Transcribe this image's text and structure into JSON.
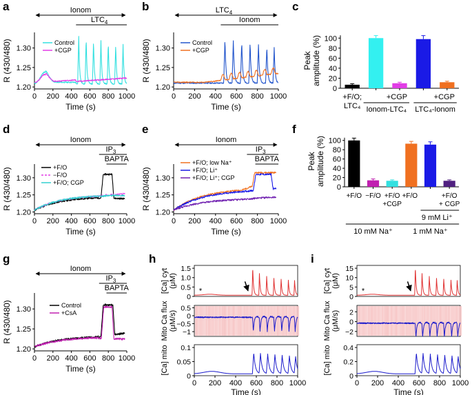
{
  "figure": {
    "panel_labels": [
      "a",
      "b",
      "c",
      "d",
      "e",
      "f",
      "g",
      "h",
      "i"
    ]
  },
  "chart_data": [
    {
      "id": "a",
      "type": "line",
      "xlabel": "Time (s)",
      "ylabel": "R (430/480)",
      "xlim": [
        0,
        1000
      ],
      "ylim": [
        1.195,
        1.34
      ],
      "xticks": [
        0,
        200,
        400,
        600,
        800,
        1000
      ],
      "yticks": [
        1.2,
        1.25,
        1.3
      ],
      "ytick_labels": [
        "1.20",
        "1.25",
        "1.30"
      ],
      "bars": [
        {
          "label": "Ionom",
          "x": [
            0,
            1000
          ],
          "arrows": true,
          "sub": ""
        },
        {
          "label": "LTC",
          "sub": "4",
          "x": [
            450,
            1000
          ],
          "arrows": false
        }
      ],
      "legend": [
        {
          "name": "Control",
          "color": "#33e0e0",
          "dash": false
        },
        {
          "name": "+CGP",
          "color": "#e23ce6",
          "dash": false
        }
      ],
      "series": [
        {
          "name": "Control",
          "color": "#33e0e0",
          "base": 1.208,
          "dip": 1.238,
          "peak_times": [
            480,
            560,
            640,
            720,
            800,
            880,
            960
          ],
          "peak_heights": [
            1.33,
            1.325,
            1.32,
            1.318,
            1.315,
            1.31,
            1.308
          ]
        },
        {
          "name": "+CGP",
          "color": "#e23ce6",
          "base": 1.21,
          "dip": 1.232,
          "drift_end": 1.228
        }
      ]
    },
    {
      "id": "b",
      "type": "line",
      "xlabel": "Time (s)",
      "ylabel": "R (430/480)",
      "xlim": [
        0,
        1000
      ],
      "ylim": [
        1.195,
        1.34
      ],
      "xticks": [
        0,
        200,
        400,
        600,
        800,
        1000
      ],
      "yticks": [
        1.2,
        1.25,
        1.3
      ],
      "ytick_labels": [
        "1.20",
        "1.25",
        "1.30"
      ],
      "bars": [
        {
          "label": "LTC",
          "sub": "4",
          "x": [
            0,
            1000
          ],
          "arrows": true
        },
        {
          "label": "Ionom",
          "sub": "",
          "x": [
            450,
            1000
          ],
          "arrows": false
        }
      ],
      "legend": [
        {
          "name": "Control",
          "color": "#2255cc",
          "dash": false
        },
        {
          "name": "+CGP",
          "color": "#f07020",
          "dash": false
        }
      ],
      "series": [
        {
          "name": "Control",
          "color": "#2255cc",
          "base": 1.21,
          "peak_times": [
            490,
            570,
            650,
            730,
            810,
            890,
            960
          ],
          "peak_heights": [
            1.325,
            1.32,
            1.318,
            1.315,
            1.31,
            1.305,
            1.3
          ]
        },
        {
          "name": "+CGP",
          "color": "#f07020",
          "base": 1.212,
          "osc_amp": 0.015,
          "drift_end": 1.235
        }
      ]
    },
    {
      "id": "c",
      "type": "bar",
      "ylabel": "Peak amplitude (%)",
      "ylim": [
        0,
        110
      ],
      "yticks": [
        0,
        20,
        40,
        60,
        80,
        100
      ],
      "values": [
        7,
        100,
        10,
        98,
        12
      ],
      "errors": [
        2,
        5,
        2,
        7,
        2
      ],
      "colors": [
        "#000000",
        "#33f0f0",
        "#e23ce6",
        "#1a1ae6",
        "#f07020"
      ],
      "tick_labels": [
        "+F/O;",
        "",
        "+CGP",
        "",
        "+CGP"
      ],
      "tick_labels_2": [
        "LTC₄",
        "",
        "",
        "",
        ""
      ],
      "groups": [
        "Ionom-LTC₄",
        "LTC₄-Ionom"
      ]
    },
    {
      "id": "d",
      "type": "line",
      "xlabel": "Time (s)",
      "ylabel": "R (430/480)",
      "xlim": [
        0,
        1000
      ],
      "ylim": [
        1.195,
        1.34
      ],
      "xticks": [
        0,
        200,
        400,
        600,
        800,
        1000
      ],
      "yticks": [
        1.2,
        1.25,
        1.3
      ],
      "ytick_labels": [
        "1.20",
        "1.25",
        "1.30"
      ],
      "bars": [
        {
          "label": "Ionom",
          "sub": "",
          "x": [
            0,
            1000
          ],
          "arrows": true
        },
        {
          "label": "IP",
          "sub": "3",
          "x": [
            700,
            1000
          ],
          "arrows": false
        },
        {
          "label": "BAPTA",
          "sub": "",
          "x": [
            780,
            1000
          ],
          "arrows": false
        }
      ],
      "legend": [
        {
          "name": "+F/O",
          "color": "#000000",
          "dash": false
        },
        {
          "name": "−F/O",
          "color": "#e23ce6",
          "dash": true
        },
        {
          "name": "+F/O; CGP",
          "color": "#33d0d0",
          "dash": false
        }
      ],
      "series": [
        {
          "name": "+F/O",
          "color": "#000000",
          "start": 1.205,
          "plateau": 1.245,
          "step": [
            720,
            860
          ],
          "step_level": 1.31,
          "end": 1.24
        },
        {
          "name": "−F/O",
          "color": "#e23ce6",
          "start": 1.205,
          "plateau": 1.25,
          "end": 1.255
        },
        {
          "name": "+F/O; CGP",
          "color": "#33d0d0",
          "start": 1.205,
          "plateau": 1.25,
          "end": 1.25
        }
      ]
    },
    {
      "id": "e",
      "type": "line",
      "xlabel": "Time (s)",
      "ylabel": "R (430/480)",
      "xlim": [
        0,
        1000
      ],
      "ylim": [
        1.195,
        1.34
      ],
      "xticks": [
        0,
        200,
        400,
        600,
        800,
        1000
      ],
      "yticks": [
        1.2,
        1.25,
        1.3
      ],
      "ytick_labels": [
        "1.20",
        "1.25",
        "1.30"
      ],
      "bars": [
        {
          "label": "Ionom",
          "sub": "",
          "x": [
            0,
            1000
          ],
          "arrows": true
        },
        {
          "label": "IP",
          "sub": "3",
          "x": [
            700,
            1000
          ],
          "arrows": false
        },
        {
          "label": "BAPTA",
          "sub": "",
          "x": [
            780,
            1000
          ],
          "arrows": false
        }
      ],
      "legend": [
        {
          "name": "+F/O; low Na⁺",
          "color": "#f07020",
          "dash": false
        },
        {
          "name": "+F/O; Li⁺",
          "color": "#1a1ae6",
          "dash": false
        },
        {
          "name": "+F/O; Li⁺; CGP",
          "color": "#7020b0",
          "dash": false
        }
      ],
      "series": [
        {
          "name": "+F/O; low Na⁺",
          "color": "#f07020",
          "start": 1.205,
          "plateau": 1.27,
          "step": [
            750,
            1000
          ],
          "step_level": 1.315,
          "end": 1.3
        },
        {
          "name": "+F/O; Li⁺",
          "color": "#1a1ae6",
          "start": 1.205,
          "plateau": 1.265,
          "step": [
            760,
            950
          ],
          "step_level": 1.31,
          "end": 1.27
        },
        {
          "name": "+F/O; Li⁺; CGP",
          "color": "#7020b0",
          "start": 1.205,
          "plateau": 1.24,
          "end": 1.245
        }
      ]
    },
    {
      "id": "f",
      "type": "bar",
      "ylabel": "Peak amplitude (%)",
      "ylim": [
        0,
        110
      ],
      "yticks": [
        0,
        20,
        40,
        60,
        80,
        100
      ],
      "values": [
        100,
        14,
        13,
        93,
        91,
        13
      ],
      "errors": [
        5,
        3,
        2,
        5,
        6,
        2
      ],
      "colors": [
        "#000000",
        "#c020b0",
        "#33e0e0",
        "#f07020",
        "#1a1ae6",
        "#502080"
      ],
      "tick_labels": [
        "+F/O",
        "−F/O",
        "+F/O",
        "+F/O",
        "",
        "+F/O"
      ],
      "tick_labels_2": [
        "",
        "",
        "+CGP",
        "",
        "",
        "+ CGP"
      ],
      "groups": [
        "9 mM Li⁺",
        "10 mM Na⁺",
        "1 mM Na⁺"
      ]
    },
    {
      "id": "g",
      "type": "line",
      "xlabel": "Time (s)",
      "ylabel": "R (430/480)",
      "xlim": [
        0,
        1000
      ],
      "ylim": [
        1.195,
        1.34
      ],
      "xticks": [
        0,
        200,
        400,
        600,
        800,
        1000
      ],
      "yticks": [
        1.2,
        1.25,
        1.3
      ],
      "ytick_labels": [
        "1.20",
        "1.25",
        "1.30"
      ],
      "bars": [
        {
          "label": "Ionom",
          "sub": "",
          "x": [
            0,
            1000
          ],
          "arrows": true
        },
        {
          "label": "IP",
          "sub": "3",
          "x": [
            700,
            1000
          ],
          "arrows": false
        },
        {
          "label": "BAPTA",
          "sub": "",
          "x": [
            780,
            1000
          ],
          "arrows": false
        }
      ],
      "legend": [
        {
          "name": "Control",
          "color": "#000000",
          "dash": false
        },
        {
          "name": "+CsA",
          "color": "#c020b0",
          "dash": false
        }
      ],
      "series": [
        {
          "name": "Control",
          "color": "#000000",
          "start": 1.205,
          "plateau": 1.232,
          "step": [
            720,
            870
          ],
          "step_level": 1.31,
          "end": 1.24
        },
        {
          "name": "+CsA",
          "color": "#c020b0",
          "start": 1.205,
          "plateau": 1.23,
          "step": [
            725,
            860
          ],
          "step_level": 1.305,
          "end": 1.225
        }
      ]
    },
    {
      "id": "h",
      "type": "line",
      "stacked": true,
      "xlabel": "Time (s)",
      "xlim": [
        0,
        1000
      ],
      "xticks": [
        0,
        200,
        400,
        600,
        800,
        1000
      ],
      "subplots": [
        {
          "ylabel": "[Ca] cyt",
          "yunit": "(μM)",
          "ylim": [
            0,
            1.65
          ],
          "yticks": [
            0,
            0.5,
            1,
            1.5
          ],
          "ytick_labels": [
            "0",
            "0.5",
            "1.0",
            "1.5"
          ],
          "color": "#e03030",
          "annotation": "*",
          "peak_times": [
            565,
            630,
            700,
            770,
            840,
            910,
            970
          ],
          "peak_heights": [
            1.5,
            1.15,
            1.0,
            0.9,
            0.85,
            0.8,
            0.78
          ]
        },
        {
          "ylabel": "Mito Ca flux",
          "yunit": "(μM/s)",
          "ylim": [
            -1.3,
            0.65
          ],
          "yticks": [
            -1,
            -0.5,
            0,
            0.5
          ],
          "ytick_labels": [
            "−1",
            "−0.5",
            "0",
            "0.5"
          ],
          "color": "#1a1acc"
        },
        {
          "ylabel": "[Ca] mito",
          "yunit": "",
          "ylim": [
            0,
            0.11
          ],
          "yticks": [
            0,
            0.05,
            0.1
          ],
          "ytick_labels": [
            "0",
            "0.05",
            "0.1"
          ],
          "color": "#1a1acc"
        }
      ]
    },
    {
      "id": "i",
      "type": "line",
      "stacked": true,
      "xlabel": "Time (s)",
      "xlim": [
        0,
        1000
      ],
      "xticks": [
        0,
        200,
        400,
        600,
        800,
        1000
      ],
      "subplots": [
        {
          "ylabel": "[Ca] cyt",
          "yunit": "(μM)",
          "ylim": [
            0,
            16.5
          ],
          "yticks": [
            0,
            5,
            10,
            15
          ],
          "ytick_labels": [
            "0",
            "5",
            "10",
            "15"
          ],
          "color": "#e03030",
          "annotation": "*",
          "peak_times": [
            565,
            630,
            700,
            770,
            840,
            910,
            970
          ],
          "peak_heights": [
            15,
            11.5,
            10,
            9,
            8.5,
            8,
            7.8
          ]
        },
        {
          "ylabel": "Mito Ca flux",
          "yunit": "(μM/s)",
          "ylim": [
            -3,
            3.3
          ],
          "yticks": [
            -2,
            0,
            2
          ],
          "ytick_labels": [
            "−2",
            "0",
            "2"
          ],
          "color": "#1a1acc"
        },
        {
          "ylabel": "[Ca] mito",
          "yunit": "",
          "ylim": [
            0,
            0.44
          ],
          "yticks": [
            0,
            0.2,
            0.4
          ],
          "ytick_labels": [
            "0",
            "0.2",
            "0.4"
          ],
          "color": "#1a1acc"
        }
      ]
    }
  ]
}
